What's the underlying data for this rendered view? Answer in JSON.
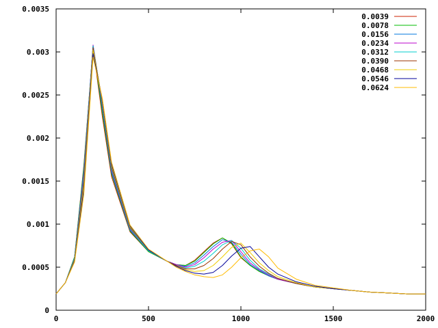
{
  "chart_data": {
    "type": "line",
    "title": "",
    "xlabel": "",
    "ylabel": "",
    "xlim": [
      0,
      2000
    ],
    "ylim": [
      0,
      0.0035
    ],
    "x_ticks": [
      "0",
      "500",
      "1000",
      "1500",
      "2000"
    ],
    "y_ticks": [
      "0",
      "0.0005",
      "0.001",
      "0.0015",
      "0.002",
      "0.0025",
      "0.003",
      "0.0035"
    ],
    "grid": false,
    "legend_position": "top-right",
    "x": [
      0,
      50,
      100,
      150,
      200,
      250,
      300,
      400,
      500,
      600,
      650,
      700,
      750,
      800,
      850,
      900,
      950,
      1000,
      1050,
      1100,
      1150,
      1200,
      1300,
      1400,
      1500,
      1600,
      1700,
      1800,
      1900,
      2000
    ],
    "series": [
      {
        "name": "0.0039",
        "color": "#cc2200",
        "values": [
          0.00019,
          0.00032,
          0.00062,
          0.00168,
          0.00305,
          0.00225,
          0.00155,
          0.00091,
          0.00068,
          0.00057,
          0.00053,
          0.00052,
          0.00058,
          0.00068,
          0.00078,
          0.00084,
          0.00077,
          0.00061,
          0.00052,
          0.00045,
          0.0004,
          0.00036,
          0.00031,
          0.00027,
          0.00025,
          0.00023,
          0.00021,
          0.0002,
          0.00019,
          0.00019
        ]
      },
      {
        "name": "0.0078",
        "color": "#00bb00",
        "values": [
          0.00019,
          0.00032,
          0.00062,
          0.00166,
          0.00307,
          0.0023,
          0.00158,
          0.00092,
          0.00068,
          0.00057,
          0.00053,
          0.00052,
          0.00057,
          0.00067,
          0.00077,
          0.00084,
          0.00078,
          0.00062,
          0.00052,
          0.00045,
          0.0004,
          0.00036,
          0.00031,
          0.00027,
          0.00025,
          0.00023,
          0.00021,
          0.0002,
          0.00019,
          0.00019
        ]
      },
      {
        "name": "0.0156",
        "color": "#0077dd",
        "values": [
          0.00019,
          0.00032,
          0.00061,
          0.00162,
          0.00308,
          0.00235,
          0.0016,
          0.00093,
          0.00069,
          0.00057,
          0.00053,
          0.00051,
          0.00055,
          0.00064,
          0.00074,
          0.00082,
          0.00079,
          0.00065,
          0.00053,
          0.00046,
          0.0004,
          0.00036,
          0.00031,
          0.00027,
          0.00025,
          0.00023,
          0.00021,
          0.0002,
          0.00019,
          0.00019
        ]
      },
      {
        "name": "0.0234",
        "color": "#bb00cc",
        "values": [
          0.00019,
          0.00032,
          0.0006,
          0.00158,
          0.00308,
          0.00238,
          0.00162,
          0.00094,
          0.00069,
          0.00057,
          0.00053,
          0.0005,
          0.00053,
          0.00061,
          0.00071,
          0.00079,
          0.00081,
          0.00068,
          0.00055,
          0.00047,
          0.00041,
          0.00036,
          0.00031,
          0.00027,
          0.00025,
          0.00023,
          0.00021,
          0.0002,
          0.00019,
          0.00019
        ]
      },
      {
        "name": "0.0312",
        "color": "#00cccc",
        "values": [
          0.00019,
          0.00032,
          0.0006,
          0.00154,
          0.00307,
          0.0024,
          0.00164,
          0.00095,
          0.00069,
          0.00057,
          0.00052,
          0.00049,
          0.00051,
          0.00057,
          0.00066,
          0.00076,
          0.00081,
          0.00072,
          0.00058,
          0.00048,
          0.00042,
          0.00037,
          0.00031,
          0.00027,
          0.00025,
          0.00023,
          0.00021,
          0.0002,
          0.00019,
          0.00019
        ]
      },
      {
        "name": "0.0390",
        "color": "#993300",
        "values": [
          0.00019,
          0.00032,
          0.00059,
          0.0015,
          0.00305,
          0.00242,
          0.00166,
          0.00096,
          0.0007,
          0.00057,
          0.00052,
          0.00048,
          0.00048,
          0.00052,
          0.0006,
          0.00071,
          0.0008,
          0.00076,
          0.00062,
          0.00051,
          0.00043,
          0.00037,
          0.00031,
          0.00027,
          0.00025,
          0.00023,
          0.00021,
          0.0002,
          0.00019,
          0.00019
        ]
      },
      {
        "name": "0.0468",
        "color": "#eecc00",
        "values": [
          0.00019,
          0.00032,
          0.00058,
          0.00145,
          0.00302,
          0.00244,
          0.00168,
          0.00097,
          0.0007,
          0.00057,
          0.00051,
          0.00047,
          0.00045,
          0.00046,
          0.00052,
          0.00062,
          0.00073,
          0.00078,
          0.00067,
          0.00055,
          0.00046,
          0.00039,
          0.00032,
          0.00027,
          0.00025,
          0.00023,
          0.00021,
          0.0002,
          0.00019,
          0.00019
        ]
      },
      {
        "name": "0.0546",
        "color": "#000099",
        "values": [
          0.00019,
          0.00032,
          0.00057,
          0.0014,
          0.00298,
          0.00245,
          0.0017,
          0.00098,
          0.0007,
          0.00057,
          0.00051,
          0.00046,
          0.00043,
          0.00042,
          0.00044,
          0.00052,
          0.00063,
          0.00072,
          0.00074,
          0.00062,
          0.0005,
          0.00042,
          0.00033,
          0.00028,
          0.00025,
          0.00023,
          0.00021,
          0.0002,
          0.00019,
          0.00019
        ]
      },
      {
        "name": "0.0624",
        "color": "#ffbb00",
        "values": [
          0.00019,
          0.00032,
          0.00056,
          0.00135,
          0.00294,
          0.00246,
          0.00172,
          0.00099,
          0.00071,
          0.00057,
          0.0005,
          0.00045,
          0.00041,
          0.00039,
          0.00038,
          0.00041,
          0.0005,
          0.00061,
          0.00069,
          0.00071,
          0.00062,
          0.00049,
          0.00036,
          0.00029,
          0.00026,
          0.00023,
          0.00021,
          0.0002,
          0.00019,
          0.00019
        ]
      }
    ]
  }
}
